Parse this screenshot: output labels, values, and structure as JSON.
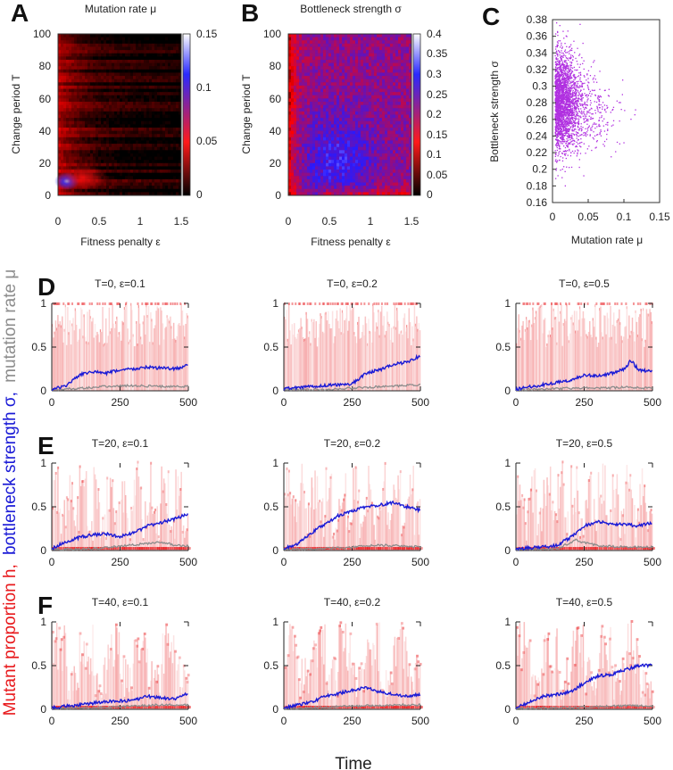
{
  "panels": {
    "A": {
      "letter": "A",
      "title": "Mutation rate μ",
      "xlabel": "Fitness penalty ε",
      "ylabel": "Change period T",
      "xticks": [
        "0",
        "0.5",
        "1",
        "1.5"
      ],
      "yticks": [
        "0",
        "20",
        "40",
        "60",
        "80",
        "100"
      ],
      "cbar_ticks": [
        "0",
        "0.05",
        "0.1",
        "0.15"
      ]
    },
    "B": {
      "letter": "B",
      "title": "Bottleneck strength σ",
      "xlabel": "Fitness penalty ε",
      "ylabel": "Change period T",
      "xticks": [
        "0",
        "0.5",
        "1",
        "1.5"
      ],
      "yticks": [
        "0",
        "20",
        "40",
        "60",
        "80",
        "100"
      ],
      "cbar_ticks": [
        "0",
        "0.05",
        "0.1",
        "0.15",
        "0.2",
        "0.25",
        "0.3",
        "0.35",
        "0.4"
      ]
    },
    "C": {
      "letter": "C",
      "xlabel": "Mutation rate μ",
      "ylabel": "Bottleneck strength σ",
      "xticks": [
        "0",
        "0.05",
        "0.1",
        "0.15"
      ],
      "yticks": [
        "0.16",
        "0.18",
        "0.2",
        "0.22",
        "0.24",
        "0.26",
        "0.28",
        "0.3",
        "0.32",
        "0.34",
        "0.36",
        "0.38"
      ]
    },
    "row_letters": [
      "D",
      "E",
      "F"
    ],
    "grid_xticks": [
      "0",
      "250",
      "500"
    ],
    "grid_yticks": [
      "0",
      "0.5",
      "1"
    ]
  },
  "shared": {
    "xlabel": "Time",
    "ylabel_red": "Mutant proportion h,",
    "ylabel_blue": "bottleneck strength σ,",
    "ylabel_gray": "mutation rate μ"
  },
  "colors": {
    "red": "#e8191c",
    "blue": "#1a1ad6",
    "gray": "#8c8c8c",
    "magenta": "#b030e0"
  },
  "chart_data": [
    {
      "id": "A",
      "type": "heatmap",
      "title": "Mutation rate μ",
      "xlabel": "Fitness penalty ε",
      "ylabel": "Change period T",
      "xlim": [
        0,
        1.5
      ],
      "ylim": [
        0,
        100
      ],
      "clim": [
        0,
        0.15
      ],
      "colormap": [
        "black",
        "red",
        "blue",
        "white"
      ],
      "description_points": [
        {
          "T": 5,
          "eps": 0.05,
          "mu": 0.12
        },
        {
          "T": 10,
          "eps": 0.3,
          "mu": 0.075
        },
        {
          "T": 60,
          "eps": 0.1,
          "mu": 0.055
        },
        {
          "T": 60,
          "eps": 1.2,
          "mu": 0.01
        }
      ]
    },
    {
      "id": "B",
      "type": "heatmap",
      "title": "Bottleneck strength σ",
      "xlabel": "Fitness penalty ε",
      "ylabel": "Change period T",
      "xlim": [
        0,
        1.5
      ],
      "ylim": [
        0,
        100
      ],
      "clim": [
        0,
        0.4
      ],
      "colormap": [
        "black",
        "red",
        "blue",
        "white"
      ],
      "description_points": [
        {
          "T": 20,
          "eps": 0.6,
          "sigma": 0.32
        },
        {
          "T": 80,
          "eps": 0.05,
          "sigma": 0.15
        },
        {
          "T": 5,
          "eps": 1.2,
          "sigma": 0.15
        }
      ]
    },
    {
      "id": "C",
      "type": "scatter",
      "xlabel": "Mutation rate μ",
      "ylabel": "Bottleneck strength σ",
      "xlim": [
        0,
        0.15
      ],
      "ylim": [
        0.16,
        0.38
      ],
      "cluster": {
        "mu_peak": 0.015,
        "mu_spread": 0.025,
        "sigma_center": 0.275,
        "sigma_spread": 0.03,
        "n_points": 2600
      }
    },
    {
      "id": "D-F",
      "type": "line",
      "xlim": [
        0,
        500
      ],
      "ylim": [
        0,
        1
      ],
      "rows": [
        {
          "letter": "D",
          "T": 0,
          "panels": [
            {
              "title": "T=0, ε=0.1",
              "sigma": [
                [
                  0,
                  0.02
                ],
                [
                  50,
                  0.05
                ],
                [
                  100,
                  0.18
                ],
                [
                  150,
                  0.22
                ],
                [
                  200,
                  0.2
                ],
                [
                  250,
                  0.24
                ],
                [
                  300,
                  0.25
                ],
                [
                  350,
                  0.27
                ],
                [
                  400,
                  0.26
                ],
                [
                  450,
                  0.25
                ],
                [
                  500,
                  0.29
                ]
              ],
              "mu": [
                [
                  0,
                  0.01
                ],
                [
                  100,
                  0.03
                ],
                [
                  200,
                  0.05
                ],
                [
                  300,
                  0.06
                ],
                [
                  400,
                  0.05
                ],
                [
                  500,
                  0.05
                ]
              ]
            },
            {
              "title": "T=0, ε=0.2",
              "sigma": [
                [
                  0,
                  0.02
                ],
                [
                  100,
                  0.05
                ],
                [
                  200,
                  0.07
                ],
                [
                  250,
                  0.08
                ],
                [
                  300,
                  0.2
                ],
                [
                  350,
                  0.24
                ],
                [
                  400,
                  0.3
                ],
                [
                  450,
                  0.33
                ],
                [
                  500,
                  0.4
                ]
              ],
              "mu": [
                [
                  0,
                  0.01
                ],
                [
                  200,
                  0.02
                ],
                [
                  300,
                  0.04
                ],
                [
                  400,
                  0.05
                ],
                [
                  500,
                  0.07
                ]
              ]
            },
            {
              "title": "T=0, ε=0.5",
              "sigma": [
                [
                  0,
                  0.02
                ],
                [
                  100,
                  0.07
                ],
                [
                  200,
                  0.12
                ],
                [
                  250,
                  0.18
                ],
                [
                  300,
                  0.17
                ],
                [
                  350,
                  0.2
                ],
                [
                  400,
                  0.25
                ],
                [
                  420,
                  0.35
                ],
                [
                  450,
                  0.24
                ],
                [
                  500,
                  0.22
                ]
              ],
              "mu": [
                [
                  0,
                  0.01
                ],
                [
                  200,
                  0.03
                ],
                [
                  300,
                  0.03
                ],
                [
                  400,
                  0.04
                ],
                [
                  500,
                  0.03
                ]
              ]
            }
          ]
        },
        {
          "letter": "E",
          "T": 20,
          "panels": [
            {
              "title": "T=20, ε=0.1",
              "sigma": [
                [
                  0,
                  0.02
                ],
                [
                  50,
                  0.1
                ],
                [
                  100,
                  0.15
                ],
                [
                  150,
                  0.18
                ],
                [
                  200,
                  0.19
                ],
                [
                  250,
                  0.16
                ],
                [
                  300,
                  0.2
                ],
                [
                  350,
                  0.28
                ],
                [
                  400,
                  0.32
                ],
                [
                  450,
                  0.36
                ],
                [
                  500,
                  0.42
                ]
              ],
              "mu": [
                [
                  0,
                  0.01
                ],
                [
                  150,
                  0.02
                ],
                [
                  250,
                  0.05
                ],
                [
                  350,
                  0.08
                ],
                [
                  400,
                  0.1
                ],
                [
                  450,
                  0.06
                ],
                [
                  500,
                  0.05
                ]
              ]
            },
            {
              "title": "T=20, ε=0.2",
              "sigma": [
                [
                  0,
                  0.02
                ],
                [
                  50,
                  0.08
                ],
                [
                  100,
                  0.2
                ],
                [
                  150,
                  0.3
                ],
                [
                  200,
                  0.4
                ],
                [
                  250,
                  0.45
                ],
                [
                  300,
                  0.5
                ],
                [
                  350,
                  0.52
                ],
                [
                  400,
                  0.55
                ],
                [
                  450,
                  0.5
                ],
                [
                  500,
                  0.46
                ]
              ],
              "mu": [
                [
                  0,
                  0.01
                ],
                [
                  150,
                  0.02
                ],
                [
                  250,
                  0.04
                ],
                [
                  350,
                  0.06
                ],
                [
                  450,
                  0.05
                ],
                [
                  500,
                  0.04
                ]
              ]
            },
            {
              "title": "T=20, ε=0.5",
              "sigma": [
                [
                  0,
                  0.02
                ],
                [
                  100,
                  0.04
                ],
                [
                  150,
                  0.06
                ],
                [
                  200,
                  0.15
                ],
                [
                  250,
                  0.28
                ],
                [
                  300,
                  0.33
                ],
                [
                  350,
                  0.3
                ],
                [
                  400,
                  0.3
                ],
                [
                  450,
                  0.28
                ],
                [
                  500,
                  0.32
                ]
              ],
              "mu": [
                [
                  0,
                  0.01
                ],
                [
                  150,
                  0.02
                ],
                [
                  220,
                  0.12
                ],
                [
                  260,
                  0.08
                ],
                [
                  320,
                  0.05
                ],
                [
                  400,
                  0.04
                ],
                [
                  500,
                  0.04
                ]
              ]
            }
          ]
        },
        {
          "letter": "F",
          "T": 40,
          "panels": [
            {
              "title": "T=40, ε=0.1",
              "sigma": [
                [
                  0,
                  0.02
                ],
                [
                  100,
                  0.05
                ],
                [
                  200,
                  0.09
                ],
                [
                  300,
                  0.1
                ],
                [
                  350,
                  0.15
                ],
                [
                  400,
                  0.13
                ],
                [
                  450,
                  0.12
                ],
                [
                  500,
                  0.18
                ]
              ],
              "mu": [
                [
                  0,
                  0.01
                ],
                [
                  200,
                  0.02
                ],
                [
                  300,
                  0.04
                ],
                [
                  400,
                  0.05
                ],
                [
                  500,
                  0.05
                ]
              ]
            },
            {
              "title": "T=40, ε=0.2",
              "sigma": [
                [
                  0,
                  0.02
                ],
                [
                  100,
                  0.08
                ],
                [
                  150,
                  0.15
                ],
                [
                  200,
                  0.18
                ],
                [
                  250,
                  0.22
                ],
                [
                  300,
                  0.25
                ],
                [
                  350,
                  0.2
                ],
                [
                  400,
                  0.17
                ],
                [
                  450,
                  0.15
                ],
                [
                  500,
                  0.17
                ]
              ],
              "mu": [
                [
                  0,
                  0.01
                ],
                [
                  200,
                  0.03
                ],
                [
                  300,
                  0.04
                ],
                [
                  400,
                  0.05
                ],
                [
                  500,
                  0.05
                ]
              ]
            },
            {
              "title": "T=40, ε=0.5",
              "sigma": [
                [
                  0,
                  0.02
                ],
                [
                  50,
                  0.08
                ],
                [
                  100,
                  0.15
                ],
                [
                  150,
                  0.17
                ],
                [
                  200,
                  0.2
                ],
                [
                  250,
                  0.3
                ],
                [
                  300,
                  0.38
                ],
                [
                  350,
                  0.4
                ],
                [
                  400,
                  0.45
                ],
                [
                  450,
                  0.5
                ],
                [
                  500,
                  0.5
                ]
              ],
              "mu": [
                [
                  0,
                  0.01
                ],
                [
                  200,
                  0.02
                ],
                [
                  300,
                  0.03
                ],
                [
                  400,
                  0.04
                ],
                [
                  500,
                  0.04
                ]
              ]
            }
          ]
        }
      ]
    }
  ]
}
